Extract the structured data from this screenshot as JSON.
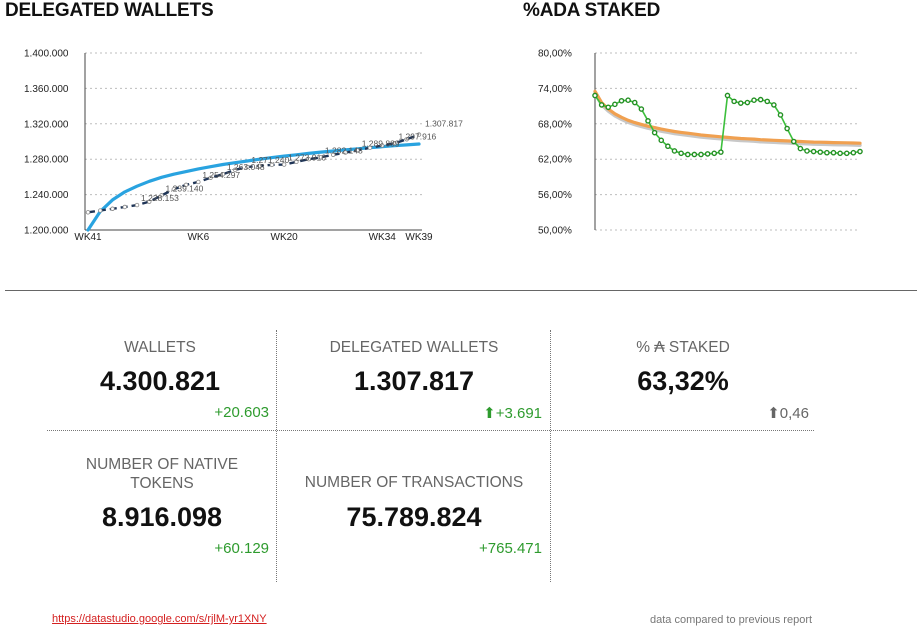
{
  "charts": {
    "delegated_wallets": {
      "title": "DELEGATED WALLETS"
    },
    "ada_staked": {
      "title": "%ADA STAKED"
    }
  },
  "chart_data": [
    {
      "type": "line",
      "title": "DELEGATED WALLETS",
      "ylim": [
        1200000,
        1400000
      ],
      "y_ticks": [
        "1.200.000",
        "1.240.000",
        "1.280.000",
        "1.320.000",
        "1.360.000",
        "1.400.000"
      ],
      "x_tick_labels": [
        {
          "index": 0,
          "label": "WK41"
        },
        {
          "index": 9,
          "label": "WK6"
        },
        {
          "index": 16,
          "label": "WK20"
        },
        {
          "index": 24,
          "label": "WK34"
        },
        {
          "index": 27,
          "label": "WK39"
        }
      ],
      "x_count": 28,
      "grid": true,
      "series": [
        {
          "kind": "dashed-line",
          "color": "#1f3557",
          "values": [
            1220000,
            1222000,
            1224000,
            1226000,
            1228153,
            1232000,
            1239140,
            1246000,
            1251000,
            1254297,
            1259000,
            1263048,
            1268000,
            1271240,
            1272500,
            1273600,
            1273916,
            1277000,
            1280000,
            1282148,
            1285000,
            1287500,
            1289889,
            1293000,
            1295500,
            1297916,
            1302500,
            1307817
          ],
          "data_labels": [
            {
              "index": 4,
              "label": "1.228.153"
            },
            {
              "index": 6,
              "label": "1.239.140"
            },
            {
              "index": 9,
              "label": "1.254.297"
            },
            {
              "index": 11,
              "label": "1.263.048"
            },
            {
              "index": 13,
              "label": "1.271.240"
            },
            {
              "index": 16,
              "label": "1.273.916"
            },
            {
              "index": 19,
              "label": "1.282.148"
            },
            {
              "index": 22,
              "label": "1.289.889"
            },
            {
              "index": 25,
              "label": "1.297.916"
            },
            {
              "index": 27,
              "label": "1.307.817"
            }
          ]
        },
        {
          "kind": "trendline",
          "color": "#29a3e0",
          "values": [
            1200000,
            1221000,
            1234000,
            1243000,
            1249500,
            1255000,
            1259500,
            1263000,
            1266000,
            1269000,
            1271500,
            1274000,
            1276000,
            1278000,
            1280000,
            1281800,
            1283500,
            1285000,
            1286500,
            1288000,
            1289300,
            1290600,
            1291800,
            1293000,
            1294100,
            1295200,
            1296200,
            1297200
          ]
        }
      ]
    },
    {
      "type": "line",
      "title": "%ADA STAKED",
      "ylim": [
        50,
        80
      ],
      "y_ticks": [
        "50,00%",
        "56,00%",
        "62,00%",
        "68,00%",
        "74,00%",
        "80,00%"
      ],
      "x_count": 41,
      "grid": true,
      "series": [
        {
          "kind": "dotted-line",
          "color": "#3cbf3c",
          "values": [
            72.8,
            71.2,
            70.8,
            71.3,
            71.9,
            72.0,
            71.6,
            70.5,
            68.5,
            66.5,
            65.2,
            64.2,
            63.4,
            63.0,
            62.8,
            62.8,
            62.8,
            62.9,
            63.0,
            63.2,
            72.8,
            71.8,
            71.5,
            71.6,
            72.0,
            72.1,
            71.8,
            71.2,
            69.5,
            67.2,
            65.0,
            63.8,
            63.4,
            63.3,
            63.2,
            63.1,
            63.1,
            63.0,
            63.0,
            63.1,
            63.3
          ]
        },
        {
          "kind": "trendline",
          "color": "#f0a050",
          "values": [
            73.5,
            71.6,
            70.5,
            69.7,
            69.1,
            68.6,
            68.2,
            67.9,
            67.6,
            67.35,
            67.1,
            66.9,
            66.7,
            66.55,
            66.4,
            66.25,
            66.1,
            66.0,
            65.9,
            65.8,
            65.7,
            65.6,
            65.5,
            65.45,
            65.4,
            65.3,
            65.25,
            65.2,
            65.15,
            65.1,
            65.05,
            65.0,
            64.95,
            64.9,
            64.88,
            64.85,
            64.82,
            64.8,
            64.78,
            64.75,
            64.72
          ]
        }
      ]
    }
  ],
  "metrics": {
    "wallets": {
      "label": "WALLETS",
      "value": "4.300.821",
      "delta": "+20.603"
    },
    "delegated_wallets": {
      "label": "DELEGATED WALLETS",
      "value": "1.307.817",
      "delta": "+3.691",
      "arrow": "⬆"
    },
    "ada_staked": {
      "label": "% ₳ STAKED",
      "value": "63,32%",
      "delta": "0,46",
      "arrow": "⬆"
    },
    "native_tokens": {
      "label": "NUMBER OF NATIVE TOKENS",
      "value": "8.916.098",
      "delta": "+60.129"
    },
    "transactions": {
      "label": "NUMBER OF TRANSACTIONS",
      "value": "75.789.824",
      "delta": "+765.471"
    }
  },
  "footer": {
    "link_text": "https://datastudio.google.com/s/rjlM-yr1XNY",
    "note": "data compared to previous report"
  },
  "colors": {
    "delta_positive": "#2e9b2e",
    "delta_neutral": "#666666",
    "link": "#d42020"
  }
}
